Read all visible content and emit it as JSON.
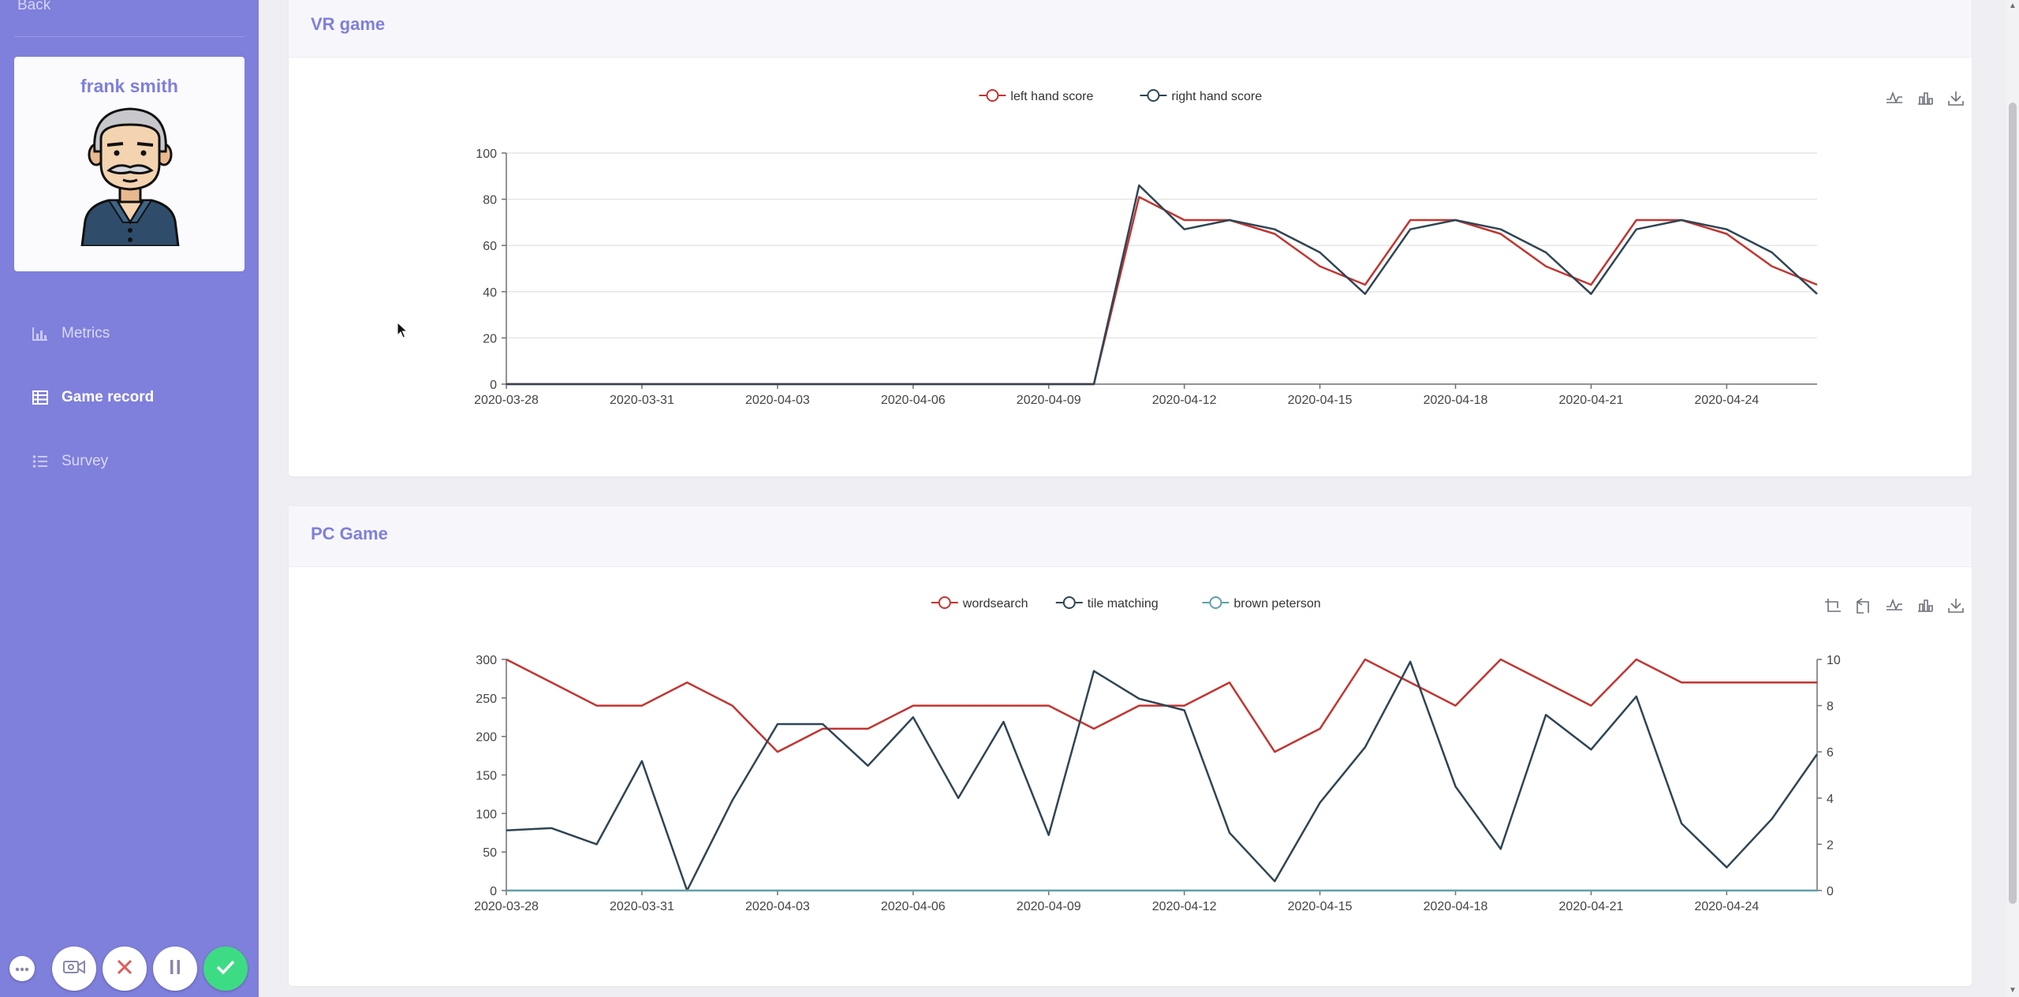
{
  "sidebar": {
    "back_label": "Back",
    "profile_name": "frank smith",
    "nav": [
      {
        "label": "Metrics",
        "icon": "bar-chart-icon",
        "active": false
      },
      {
        "label": "Game record",
        "icon": "table-icon",
        "active": true
      },
      {
        "label": "Survey",
        "icon": "list-icon",
        "active": false
      }
    ],
    "call_controls": [
      "more-icon",
      "camera-icon",
      "hangup-icon",
      "pause-icon",
      "check-icon"
    ]
  },
  "colors": {
    "sidebar": "#7f7fdc",
    "accent": "#7f7fdc",
    "series_red": "#c23531",
    "series_dark": "#2f4554",
    "series_teal": "#61a0a8",
    "check_green": "#3ddc84",
    "hangup_red": "#e05a5a"
  },
  "vr_card": {
    "title": "VR game"
  },
  "pc_card": {
    "title": "PC Game"
  },
  "chart_data": [
    {
      "type": "line",
      "x_ticks": [
        "2020-03-28",
        "2020-03-31",
        "2020-04-03",
        "2020-04-06",
        "2020-04-09",
        "2020-04-12",
        "2020-04-15",
        "2020-04-18",
        "2020-04-21",
        "2020-04-24"
      ],
      "y_ticks": [
        "0",
        "20",
        "40",
        "60",
        "80",
        "100"
      ],
      "ylim": [
        0,
        100
      ],
      "x_start": "2020-03-28",
      "x_end": "2020-04-26",
      "grid": true,
      "legend_position": "top-center",
      "toolbox": [
        "line-chart-icon",
        "bar-chart-icon",
        "download-icon"
      ],
      "series": [
        {
          "name": "left hand score",
          "color": "#c23531",
          "points": [
            [
              "2020-03-28",
              0
            ],
            [
              "2020-04-10",
              0
            ],
            [
              "2020-04-11",
              81
            ],
            [
              "2020-04-12",
              71
            ],
            [
              "2020-04-13",
              71
            ],
            [
              "2020-04-14",
              65
            ],
            [
              "2020-04-15",
              51
            ],
            [
              "2020-04-16",
              43
            ],
            [
              "2020-04-17",
              71
            ],
            [
              "2020-04-18",
              71
            ],
            [
              "2020-04-19",
              65
            ],
            [
              "2020-04-20",
              51
            ],
            [
              "2020-04-21",
              43
            ],
            [
              "2020-04-22",
              71
            ],
            [
              "2020-04-23",
              71
            ],
            [
              "2020-04-24",
              65
            ],
            [
              "2020-04-25",
              51
            ],
            [
              "2020-04-26",
              43
            ]
          ]
        },
        {
          "name": "right hand score",
          "color": "#2f4554",
          "points": [
            [
              "2020-03-28",
              0
            ],
            [
              "2020-04-10",
              0
            ],
            [
              "2020-04-11",
              86
            ],
            [
              "2020-04-12",
              67
            ],
            [
              "2020-04-13",
              71
            ],
            [
              "2020-04-14",
              67
            ],
            [
              "2020-04-15",
              57
            ],
            [
              "2020-04-16",
              39
            ],
            [
              "2020-04-17",
              67
            ],
            [
              "2020-04-18",
              71
            ],
            [
              "2020-04-19",
              67
            ],
            [
              "2020-04-20",
              57
            ],
            [
              "2020-04-21",
              39
            ],
            [
              "2020-04-22",
              67
            ],
            [
              "2020-04-23",
              71
            ],
            [
              "2020-04-24",
              67
            ],
            [
              "2020-04-25",
              57
            ],
            [
              "2020-04-26",
              39
            ]
          ]
        }
      ]
    },
    {
      "type": "line",
      "x_ticks": [
        "2020-03-28",
        "2020-03-31",
        "2020-04-03",
        "2020-04-06",
        "2020-04-09",
        "2020-04-12",
        "2020-04-15",
        "2020-04-18",
        "2020-04-21",
        "2020-04-24"
      ],
      "y_ticks": [
        "0",
        "50",
        "100",
        "150",
        "200",
        "250",
        "300"
      ],
      "y2_ticks": [
        "0",
        "2",
        "4",
        "6",
        "8",
        "10"
      ],
      "ylim": [
        0,
        300
      ],
      "y2lim": [
        0,
        10
      ],
      "x_start": "2020-03-28",
      "x_end": "2020-04-26",
      "grid": false,
      "legend_position": "top-center",
      "toolbox": [
        "zoom-icon",
        "zoom-reset-icon",
        "line-chart-icon",
        "bar-chart-icon",
        "download-icon"
      ],
      "series": [
        {
          "name": "wordsearch",
          "axis": "left",
          "color": "#c23531",
          "points": [
            [
              "2020-03-28",
              300
            ],
            [
              "2020-03-29",
              270
            ],
            [
              "2020-03-30",
              240
            ],
            [
              "2020-03-31",
              240
            ],
            [
              "2020-04-01",
              270
            ],
            [
              "2020-04-02",
              240
            ],
            [
              "2020-04-03",
              180
            ],
            [
              "2020-04-04",
              210
            ],
            [
              "2020-04-05",
              210
            ],
            [
              "2020-04-06",
              240
            ],
            [
              "2020-04-07",
              240
            ],
            [
              "2020-04-08",
              240
            ],
            [
              "2020-04-09",
              240
            ],
            [
              "2020-04-10",
              210
            ],
            [
              "2020-04-11",
              240
            ],
            [
              "2020-04-12",
              240
            ],
            [
              "2020-04-13",
              270
            ],
            [
              "2020-04-14",
              180
            ],
            [
              "2020-04-15",
              210
            ],
            [
              "2020-04-16",
              300
            ],
            [
              "2020-04-17",
              270
            ],
            [
              "2020-04-18",
              240
            ],
            [
              "2020-04-19",
              300
            ],
            [
              "2020-04-20",
              270
            ],
            [
              "2020-04-21",
              240
            ],
            [
              "2020-04-22",
              300
            ],
            [
              "2020-04-23",
              270
            ],
            [
              "2020-04-24",
              270
            ],
            [
              "2020-04-25",
              270
            ],
            [
              "2020-04-26",
              270
            ]
          ]
        },
        {
          "name": "tile matching",
          "axis": "right",
          "color": "#2f4554",
          "points": [
            [
              "2020-03-28",
              2.6
            ],
            [
              "2020-03-29",
              2.7
            ],
            [
              "2020-03-30",
              2.0
            ],
            [
              "2020-03-31",
              5.6
            ],
            [
              "2020-04-01",
              0
            ],
            [
              "2020-04-02",
              3.9
            ],
            [
              "2020-04-03",
              7.2
            ],
            [
              "2020-04-04",
              7.2
            ],
            [
              "2020-04-05",
              5.4
            ],
            [
              "2020-04-06",
              7.5
            ],
            [
              "2020-04-07",
              4.0
            ],
            [
              "2020-04-08",
              7.3
            ],
            [
              "2020-04-09",
              2.4
            ],
            [
              "2020-04-10",
              9.5
            ],
            [
              "2020-04-11",
              8.3
            ],
            [
              "2020-04-12",
              7.8
            ],
            [
              "2020-04-13",
              2.5
            ],
            [
              "2020-04-14",
              0.4
            ],
            [
              "2020-04-15",
              3.8
            ],
            [
              "2020-04-16",
              6.2
            ],
            [
              "2020-04-17",
              9.9
            ],
            [
              "2020-04-18",
              4.5
            ],
            [
              "2020-04-19",
              1.8
            ],
            [
              "2020-04-20",
              7.6
            ],
            [
              "2020-04-21",
              6.1
            ],
            [
              "2020-04-22",
              8.4
            ],
            [
              "2020-04-23",
              2.9
            ],
            [
              "2020-04-24",
              1.0
            ],
            [
              "2020-04-25",
              3.1
            ],
            [
              "2020-04-26",
              5.9
            ]
          ]
        },
        {
          "name": "brown peterson",
          "axis": "left",
          "color": "#61a0a8",
          "points": [
            [
              "2020-03-28",
              0
            ],
            [
              "2020-04-26",
              0
            ]
          ]
        }
      ]
    }
  ]
}
